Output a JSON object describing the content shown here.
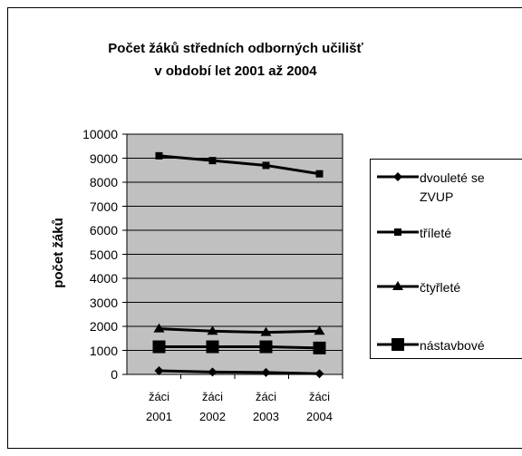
{
  "chart_data": {
    "type": "line",
    "title": [
      "Počet žáků středních odborných učilišť",
      "v období let 2001 až 2004"
    ],
    "y_label": "počet žáků",
    "categories": [
      "žáci 2001",
      "žáci 2002",
      "žáci 2003",
      "žáci 2004"
    ],
    "series": [
      {
        "name": "dvouleté se ZVUP",
        "color": "#000000",
        "marker": "diamond",
        "values": [
          150,
          100,
          80,
          30
        ]
      },
      {
        "name": "tříleté",
        "color": "#000000",
        "marker": "small-square",
        "values": [
          9100,
          8900,
          8700,
          8350
        ]
      },
      {
        "name": "čtyřleté",
        "color": "#000000",
        "marker": "triangle",
        "values": [
          1900,
          1800,
          1750,
          1800
        ]
      },
      {
        "name": "nástavbové",
        "color": "#000000",
        "marker": "big-square",
        "values": [
          1150,
          1150,
          1150,
          1100
        ]
      }
    ],
    "ylim": [
      0,
      10000
    ],
    "yticks": [
      0,
      1000,
      2000,
      3000,
      4000,
      5000,
      6000,
      7000,
      8000,
      9000,
      10000
    ],
    "grid": true,
    "plot_background": "#c0c0c0",
    "legend": "right"
  }
}
